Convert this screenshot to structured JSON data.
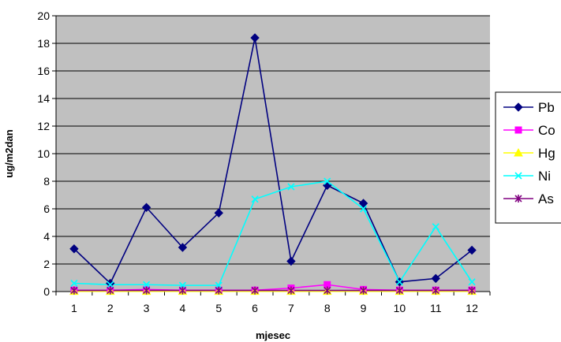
{
  "chart_data": {
    "type": "line",
    "title": "",
    "xlabel": "mjesec",
    "ylabel": "ug/m2dan",
    "categories": [
      "1",
      "2",
      "3",
      "4",
      "5",
      "6",
      "7",
      "8",
      "9",
      "10",
      "11",
      "12"
    ],
    "ylim": [
      0,
      20
    ],
    "yticks": [
      "0",
      "2",
      "4",
      "6",
      "8",
      "10",
      "12",
      "14",
      "16",
      "18",
      "20"
    ],
    "grid": true,
    "plot_background": "#c0c0c0",
    "legend_position": "right",
    "series": [
      {
        "name": "Pb",
        "color": "#000080",
        "marker": "diamond",
        "values": [
          3.1,
          0.6,
          6.1,
          3.2,
          5.7,
          18.4,
          2.2,
          7.7,
          6.4,
          0.7,
          0.95,
          3.0
        ]
      },
      {
        "name": "Co",
        "color": "#ff00ff",
        "marker": "square",
        "values": [
          0.1,
          0.1,
          0.15,
          0.1,
          0.1,
          0.1,
          0.25,
          0.5,
          0.15,
          0.1,
          0.1,
          0.1
        ]
      },
      {
        "name": "Hg",
        "color": "#ffff00",
        "marker": "triangle",
        "values": [
          0.02,
          0.02,
          0.02,
          0.02,
          0.02,
          0.02,
          0.02,
          0.02,
          0.02,
          0.02,
          0.02,
          0.02
        ]
      },
      {
        "name": "Ni",
        "color": "#00ffff",
        "marker": "x",
        "values": [
          0.6,
          0.5,
          0.5,
          0.45,
          0.45,
          6.7,
          7.6,
          8.0,
          6.0,
          0.7,
          4.7,
          0.7
        ]
      },
      {
        "name": "As",
        "color": "#800080",
        "marker": "star",
        "values": [
          0.08,
          0.08,
          0.08,
          0.08,
          0.08,
          0.08,
          0.08,
          0.08,
          0.08,
          0.08,
          0.08,
          0.08
        ]
      }
    ]
  }
}
